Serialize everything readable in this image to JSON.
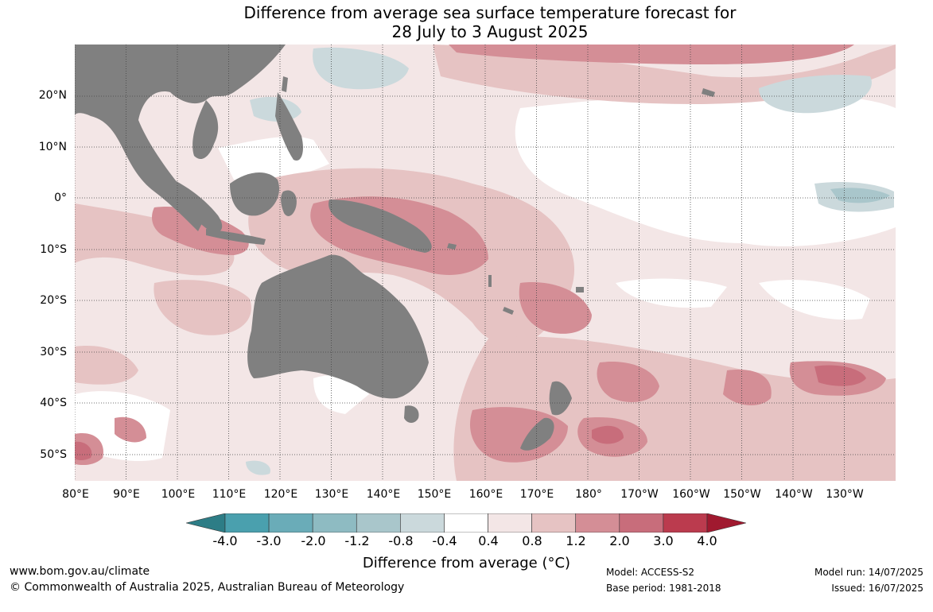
{
  "title": {
    "line1": "Difference from average sea surface temperature forecast for",
    "line2": "28 July to 3 August 2025"
  },
  "map": {
    "region": "Australia and surrounding oceans",
    "colors": {
      "land": "#808080",
      "ocean_neutral": "#ffffff",
      "warm_1": "#f3e6e6",
      "warm_2": "#e6c3c3",
      "warm_3": "#d48e96",
      "warm_4": "#c86d7b",
      "warm_5": "#bb3b4e",
      "cool_1": "#cbd9dc",
      "cool_2": "#a9c6cb"
    },
    "lat_labels": [
      "20°N",
      "10°N",
      "0°",
      "10°S",
      "20°S",
      "30°S",
      "40°S",
      "50°S"
    ],
    "lon_labels": [
      "80°E",
      "90°E",
      "100°E",
      "110°E",
      "120°E",
      "130°E",
      "140°E",
      "150°E",
      "160°E",
      "170°E",
      "180°",
      "170°W",
      "160°W",
      "150°W",
      "140°W",
      "130°W"
    ]
  },
  "colorbar": {
    "ticks": [
      "-4.0",
      "-3.0",
      "-2.0",
      "-1.2",
      "-0.8",
      "-0.4",
      "0.4",
      "0.8",
      "1.2",
      "2.0",
      "3.0",
      "4.0"
    ],
    "colors": [
      "#2d7d86",
      "#4aa0ae",
      "#6aacb8",
      "#8ebbc2",
      "#a9c6cb",
      "#cbd9dc",
      "#ffffff",
      "#f3e6e6",
      "#e6c3c3",
      "#d48e96",
      "#c86d7b",
      "#bb3b4e",
      "#a0192f"
    ],
    "label": "Difference from average (°C)"
  },
  "footer": {
    "website": "www.bom.gov.au/climate",
    "copyright": "© Commonwealth of Australia 2025, Australian Bureau of Meteorology",
    "model": "Model: ACCESS-S2",
    "base_period": "Base period: 1981-2018",
    "model_run": "Model run: 14/07/2025",
    "issued": "Issued: 16/07/2025"
  }
}
